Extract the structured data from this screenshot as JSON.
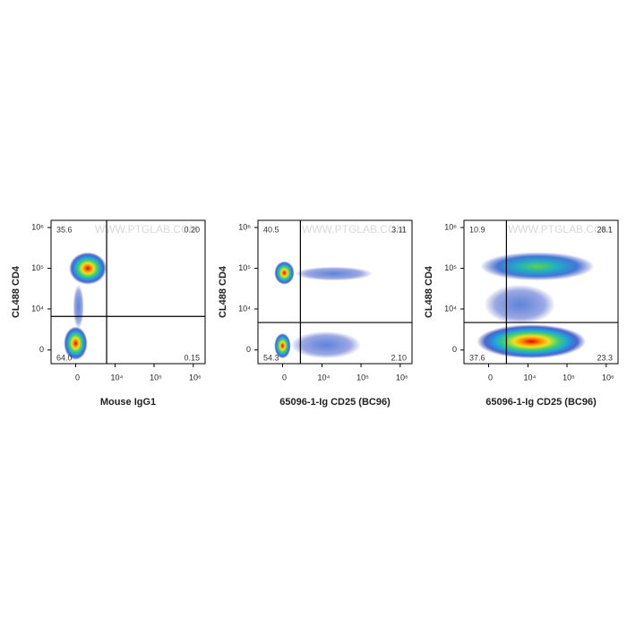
{
  "chart_data": [
    {
      "type": "flow-density",
      "y_label": "CL488 CD4",
      "x_label": "Mouse IgG1",
      "watermark": "WWW.PTGLAB.COM",
      "xscale": "biexponential",
      "yscale": "biexponential",
      "xlim": [
        -4000,
        2000000
      ],
      "ylim": [
        -1700,
        1500000
      ],
      "xticks": [
        0,
        {
          "value": 10000,
          "label": "10⁴"
        },
        {
          "value": 100000,
          "label": "10⁵"
        },
        {
          "value": 1000000,
          "label": "10⁶"
        }
      ],
      "yticks": [
        0,
        {
          "value": 10000,
          "label": "10⁴"
        },
        {
          "value": 100000,
          "label": "10⁵"
        },
        {
          "value": 1000000,
          "label": "10⁶"
        }
      ],
      "gates": {
        "x": 6000,
        "y": 6500
      },
      "quadrants": {
        "values": [
          35.6,
          0.2,
          64.0,
          0.15
        ],
        "value_labels": [
          "35.6",
          "0.20",
          "64.0",
          "0.15"
        ]
      },
      "populations": [
        {
          "x": [
            -300,
            1000
          ],
          "y": [
            3000,
            40000
          ],
          "density": "low"
        },
        {
          "x": [
            -800,
            6000
          ],
          "y": [
            40000,
            250000
          ],
          "density": "high"
        },
        {
          "x": [
            -1500,
            1500
          ],
          "y": [
            -1200,
            3500
          ],
          "density": "high"
        }
      ]
    },
    {
      "type": "flow-density",
      "y_label": "CL488 CD4",
      "x_label": "65096-1-Ig CD25 (BC96)",
      "watermark": "WWW.PTGLAB.COM",
      "xscale": "biexponential",
      "yscale": "biexponential",
      "xlim": [
        -4000,
        2000000
      ],
      "ylim": [
        -1700,
        1500000
      ],
      "xticks": [
        0,
        {
          "value": 10000,
          "label": "10⁴"
        },
        {
          "value": 100000,
          "label": "10⁵"
        },
        {
          "value": 1000000,
          "label": "10⁶"
        }
      ],
      "yticks": [
        0,
        {
          "value": 10000,
          "label": "10⁴"
        },
        {
          "value": 100000,
          "label": "10⁵"
        },
        {
          "value": 1000000,
          "label": "10⁶"
        }
      ],
      "gates": {
        "x": 2500,
        "y": 4500
      },
      "quadrants": {
        "values": [
          40.5,
          3.11,
          54.3,
          2.1
        ],
        "value_labels": [
          "40.5",
          "3.11",
          "54.3",
          "2.10"
        ]
      },
      "populations": [
        {
          "x": [
            1500,
            200000
          ],
          "y": [
            50000,
            110000
          ],
          "density": "low"
        },
        {
          "x": [
            1000,
            100000
          ],
          "y": [
            -1000,
            2500
          ],
          "density": "low"
        },
        {
          "x": [
            -1000,
            1500
          ],
          "y": [
            40000,
            150000
          ],
          "density": "high"
        },
        {
          "x": [
            -1000,
            1000
          ],
          "y": [
            -1000,
            2200
          ],
          "density": "high"
        }
      ]
    },
    {
      "type": "flow-density",
      "y_label": "CL488 CD4",
      "x_label": "65096-1-Ig CD25 (BC96)",
      "watermark": "WWW.PTGLAB.COM",
      "xscale": "biexponential",
      "yscale": "biexponential",
      "xlim": [
        -4000,
        2000000
      ],
      "ylim": [
        -1700,
        1500000
      ],
      "xticks": [
        0,
        {
          "value": 10000,
          "label": "10⁴"
        },
        {
          "value": 100000,
          "label": "10⁵"
        },
        {
          "value": 1000000,
          "label": "10⁶"
        }
      ],
      "yticks": [
        0,
        {
          "value": 10000,
          "label": "10⁴"
        },
        {
          "value": 100000,
          "label": "10⁵"
        },
        {
          "value": 1000000,
          "label": "10⁶"
        }
      ],
      "gates": {
        "x": 2500,
        "y": 4500
      },
      "quadrants": {
        "values": [
          10.9,
          28.1,
          37.6,
          23.3
        ],
        "value_labels": [
          "10.9",
          "28.1",
          "37.6",
          "23.3"
        ]
      },
      "populations": [
        {
          "x": [
            -500,
            50000
          ],
          "y": [
            4000,
            40000
          ],
          "density": "low"
        },
        {
          "x": [
            -1000,
            500000
          ],
          "y": [
            50000,
            250000
          ],
          "density": "medium"
        },
        {
          "x": [
            -1500,
            300000
          ],
          "y": [
            -1000,
            4000
          ],
          "density": "high"
        }
      ]
    }
  ]
}
